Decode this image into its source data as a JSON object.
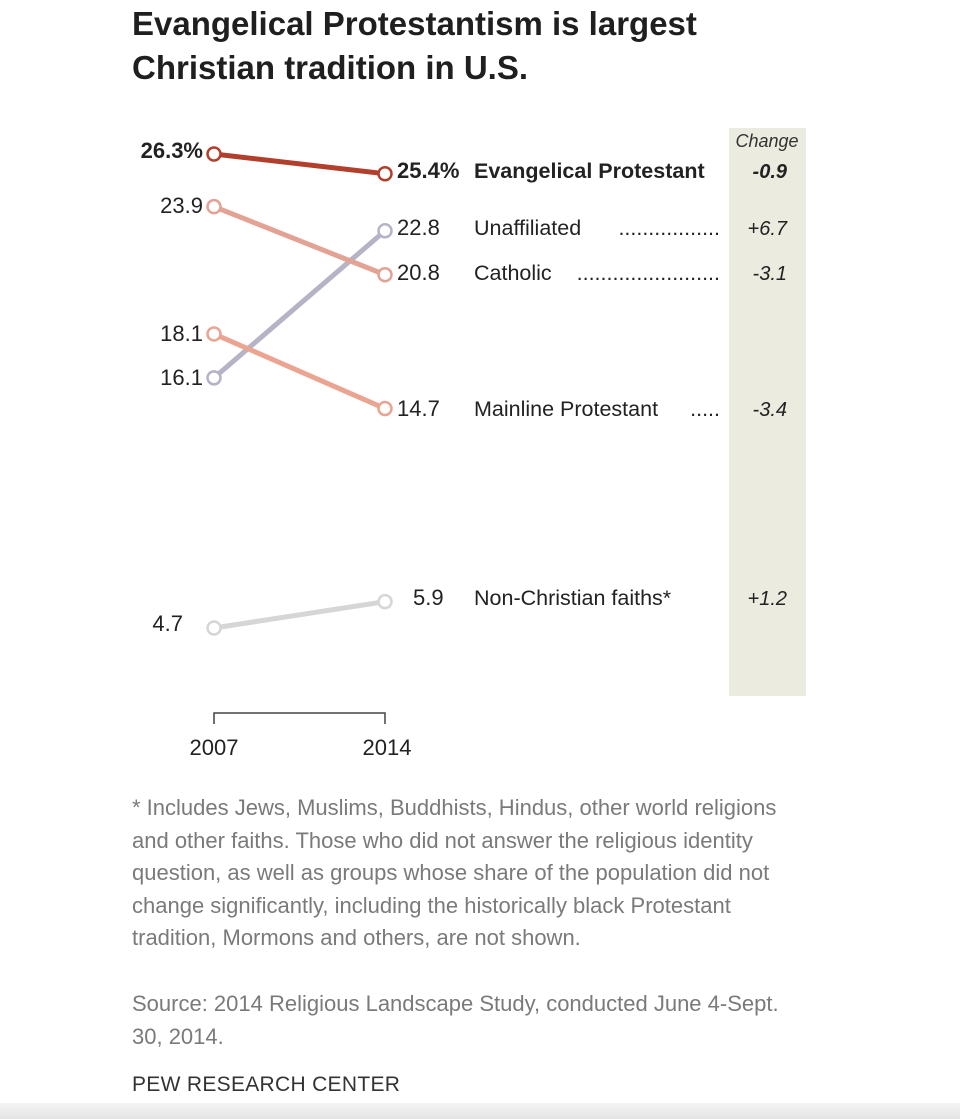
{
  "title": "Evangelical Protestantism is largest Christian tradition in U.S.",
  "chart_data": {
    "type": "line",
    "x": [
      "2007",
      "2014"
    ],
    "change_header": "Change",
    "series": [
      {
        "name": "Evangelical Protestant",
        "values": [
          26.3,
          25.4
        ],
        "change": "-0.9",
        "start_label": "26.3%",
        "end_label": "25.4%",
        "leader": "",
        "color": "#b13f2c",
        "bold": true
      },
      {
        "name": "Unaffiliated",
        "values": [
          16.1,
          22.8
        ],
        "change": "+6.7",
        "start_label": "16.1",
        "end_label": "22.8",
        "leader": ".................",
        "color": "#b5b3c6",
        "bold": false
      },
      {
        "name": "Catholic",
        "values": [
          23.9,
          20.8
        ],
        "change": "-3.1",
        "start_label": "23.9",
        "end_label": "20.8",
        "leader": "........................",
        "color": "#e3a394",
        "bold": false
      },
      {
        "name": "Mainline Protestant",
        "values": [
          18.1,
          14.7
        ],
        "change": "-3.4",
        "start_label": "18.1",
        "end_label": "14.7",
        "leader": ".....",
        "color": "#eba492",
        "bold": false
      },
      {
        "name": "Non-Christian faiths*",
        "values": [
          4.7,
          5.9
        ],
        "change": "+1.2",
        "start_label": "4.7",
        "end_label": "5.9",
        "leader": "",
        "color": "#d6d6d6",
        "bold": false
      }
    ]
  },
  "footnote": "* Includes Jews, Muslims, Buddhists, Hindus, other world religions and other faiths. Those who did not answer the religious identity question, as well as groups whose share of the population did not change significantly, including the historically black Protestant tradition, Mormons and others, are not shown.",
  "source": "Source: 2014 Religious Landscape Study, conducted June 4-Sept. 30, 2014.",
  "organization": "PEW RESEARCH CENTER",
  "colors": {
    "change_band": "#ebebdf",
    "text": "#222222",
    "note_text": "#7a7a7a"
  }
}
